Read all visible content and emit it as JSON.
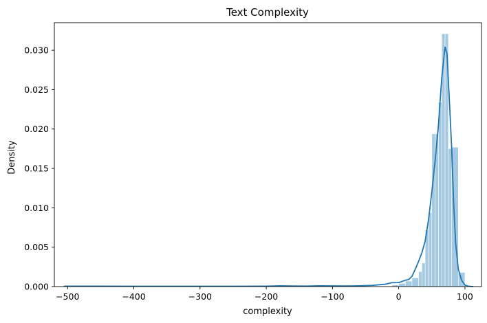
{
  "chart_data": {
    "type": "histogram",
    "title": "Text Complexity",
    "xlabel": "complexity",
    "ylabel": "Density",
    "xlim": [
      -520,
      125
    ],
    "ylim": [
      0,
      0.0335
    ],
    "xticks": [
      {
        "value": -500,
        "label": "−500"
      },
      {
        "value": -400,
        "label": "−400"
      },
      {
        "value": -300,
        "label": "−300"
      },
      {
        "value": -200,
        "label": "−200"
      },
      {
        "value": -100,
        "label": "−100"
      },
      {
        "value": 0,
        "label": "0"
      },
      {
        "value": 100,
        "label": "100"
      }
    ],
    "yticks": [
      {
        "value": 0.0,
        "label": "0.000"
      },
      {
        "value": 0.005,
        "label": "0.005"
      },
      {
        "value": 0.01,
        "label": "0.010"
      },
      {
        "value": 0.015,
        "label": "0.015"
      },
      {
        "value": 0.02,
        "label": "0.020"
      },
      {
        "value": 0.025,
        "label": "0.025"
      },
      {
        "value": 0.03,
        "label": "0.030"
      }
    ],
    "bars": [
      {
        "x0": -10,
        "x1": 0,
        "density": 0.0002
      },
      {
        "x0": 0,
        "x1": 10,
        "density": 0.0004
      },
      {
        "x0": 10,
        "x1": 20,
        "density": 0.0007
      },
      {
        "x0": 20,
        "x1": 30,
        "density": 0.0011
      },
      {
        "x0": 30,
        "x1": 35,
        "density": 0.0019
      },
      {
        "x0": 35,
        "x1": 40,
        "density": 0.003
      },
      {
        "x0": 40,
        "x1": 45,
        "density": 0.0072
      },
      {
        "x0": 45,
        "x1": 50,
        "density": 0.0094
      },
      {
        "x0": 50,
        "x1": 55,
        "density": 0.0194
      },
      {
        "x0": 55,
        "x1": 60,
        "density": 0.0194
      },
      {
        "x0": 60,
        "x1": 65,
        "density": 0.0234
      },
      {
        "x0": 65,
        "x1": 70,
        "density": 0.0321
      },
      {
        "x0": 70,
        "x1": 75,
        "density": 0.0321
      },
      {
        "x0": 75,
        "x1": 80,
        "density": 0.0175
      },
      {
        "x0": 80,
        "x1": 90,
        "density": 0.0177
      },
      {
        "x0": 90,
        "x1": 100,
        "density": 0.0018
      }
    ],
    "kde": {
      "x": [
        -505,
        -450,
        -400,
        -350,
        -300,
        -250,
        -200,
        -180,
        -160,
        -140,
        -120,
        -100,
        -80,
        -60,
        -40,
        -20,
        -10,
        0,
        10,
        15,
        20,
        25,
        30,
        35,
        40,
        45,
        50,
        55,
        60,
        65,
        70,
        73,
        76,
        80,
        83,
        86,
        90,
        95,
        100,
        105,
        112
      ],
      "y": [
        5e-05,
        5e-05,
        4e-05,
        4e-05,
        4e-05,
        4e-05,
        5e-05,
        0.0001,
        7e-05,
        6e-05,
        0.0001,
        8e-05,
        7e-05,
        0.0001,
        0.00015,
        0.0003,
        0.0005,
        0.0005,
        0.0008,
        0.0009,
        0.0013,
        0.0022,
        0.0032,
        0.0043,
        0.0058,
        0.0085,
        0.012,
        0.016,
        0.0205,
        0.0265,
        0.0304,
        0.0295,
        0.0245,
        0.0175,
        0.0105,
        0.0055,
        0.0022,
        0.0008,
        0.0002,
        5e-05,
        0.0
      ]
    },
    "bar_color": "#1f77b4",
    "bar_opacity": 0.4,
    "line_color": "#1f77b4",
    "grid": false,
    "legend": "none"
  }
}
